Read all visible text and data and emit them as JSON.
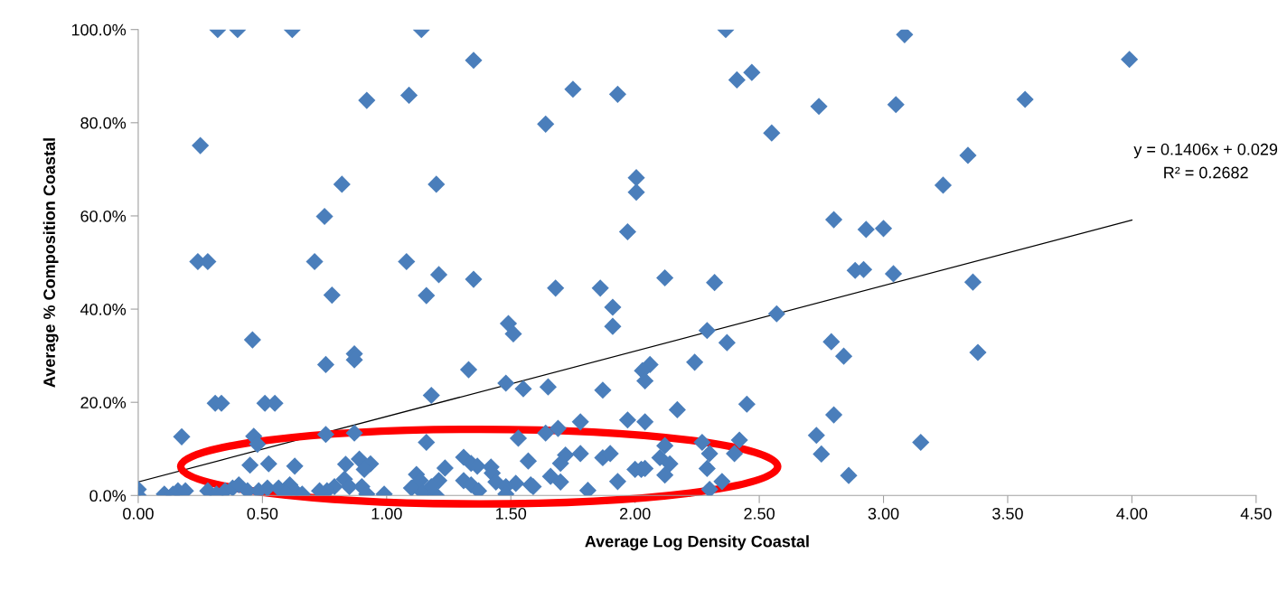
{
  "chart_data": {
    "type": "scatter",
    "xlabel": "Average Log Density Coastal",
    "ylabel": "Average % Composition Coastal",
    "xlim": [
      0,
      4.5
    ],
    "xticks": [
      {
        "value": 0,
        "label": "0.00"
      },
      {
        "value": 0.5,
        "label": "0.50"
      },
      {
        "value": 1,
        "label": "1.00"
      },
      {
        "value": 1.5,
        "label": "1.50"
      },
      {
        "value": 2,
        "label": "2.00"
      },
      {
        "value": 2.5,
        "label": "2.50"
      },
      {
        "value": 3,
        "label": "3.00"
      },
      {
        "value": 3.5,
        "label": "3.50"
      },
      {
        "value": 4,
        "label": "4.00"
      },
      {
        "value": 4.5,
        "label": "4.50"
      }
    ],
    "ylim": [
      0,
      100
    ],
    "yticks": [
      {
        "value": 0,
        "label": "0.0%"
      },
      {
        "value": 20,
        "label": "20.0%"
      },
      {
        "value": 40,
        "label": "40.0%"
      },
      {
        "value": 60,
        "label": "60.0%"
      },
      {
        "value": 80,
        "label": "80.0%"
      },
      {
        "value": 100,
        "label": "100.0%"
      }
    ],
    "grid": false,
    "annotations": [
      "y = 0.1406x + 0.029",
      "R² = 0.2682"
    ],
    "series": [
      {
        "marker": "diamond",
        "color": "#4a7ebb",
        "x": [
          0.32,
          0.4,
          0.62,
          1.14,
          1.35,
          0.92,
          1.09,
          1.64,
          0.25,
          0.82,
          1.2,
          0.75,
          0.71,
          0.24,
          0.28,
          1.08,
          1.21,
          1.35,
          1.16,
          0.78,
          1.49,
          1.51,
          0.46,
          0.87,
          0.87,
          0.755,
          1.33,
          1.48,
          1.55,
          1.18,
          0.31,
          0.335,
          0.51,
          0.55,
          0.175,
          0.465,
          0.48,
          0.755,
          0.87,
          1.16,
          1.53,
          0.45,
          0.525,
          0.63,
          0.835,
          0.89,
          0.935,
          0.91,
          0.83,
          0.85,
          1.12,
          1.135,
          1.235,
          1.21,
          1.31,
          1.34,
          1.365,
          1.42,
          1.425,
          1.57,
          1.31,
          1.34,
          1.37,
          1.44,
          1.48,
          1.48,
          1.52,
          1.59,
          1.1,
          1.145,
          1.2,
          1.18,
          0.99,
          0.9,
          0.92,
          0.79,
          0.76,
          0.73,
          0.61,
          0.63,
          0.66,
          0.28,
          0.315,
          0.35,
          0.38,
          0.405,
          0.44,
          0.485,
          0.52,
          0.565,
          0.595,
          0.105,
          0.14,
          0.16,
          0,
          0,
          0.19,
          1.68,
          1.86,
          2.12,
          2.32,
          1.91,
          1.91,
          2.29,
          2.57,
          2.37,
          2.79,
          2.84,
          2.886,
          2.92,
          3.04,
          2.24,
          2.06,
          2.03,
          2.04,
          1.65,
          1.87,
          2.45,
          2.17,
          2.8,
          1.78,
          1.97,
          2.04,
          1.69,
          1.64,
          2.73,
          3.15,
          2.27,
          2.42,
          2.12,
          2.75,
          2.3,
          2.4,
          1.72,
          1.7,
          1.78,
          1.87,
          1.9,
          2.0,
          2.025,
          2.04,
          2.1,
          2.14,
          2.12,
          2.29,
          1.66,
          1.58,
          1.7,
          1.81,
          1.93,
          2.3,
          2.35,
          2.86,
          2.365,
          3.085,
          1.75,
          1.93,
          2.41,
          2.47,
          2.74,
          3.05,
          2.55,
          2.005,
          2.005,
          1.97,
          2.8,
          2.93,
          3.0,
          3.24,
          3.99,
          3.57,
          3.34,
          3.36,
          3.38
        ],
        "values": [
          100,
          100,
          100,
          100,
          93.4,
          84.8,
          85.9,
          79.7,
          75.1,
          66.8,
          66.8,
          59.9,
          50.2,
          50.2,
          50.2,
          50.2,
          47.4,
          46.4,
          42.9,
          43.0,
          36.9,
          34.7,
          33.4,
          30.4,
          29.1,
          28.1,
          27.0,
          24.1,
          22.9,
          21.5,
          19.8,
          19.8,
          19.8,
          19.8,
          12.6,
          12.7,
          11.0,
          13.1,
          13.4,
          11.4,
          12.3,
          6.5,
          6.8,
          6.3,
          6.7,
          7.8,
          6.8,
          5.6,
          3.5,
          1.9,
          4.5,
          3.2,
          5.9,
          3.2,
          8.2,
          6.9,
          6.3,
          6.1,
          4.8,
          7.4,
          3.2,
          2.3,
          1.0,
          2.9,
          1.9,
          0.3,
          2.6,
          1.9,
          1.6,
          0.6,
          0,
          1.9,
          0.3,
          1.9,
          0.3,
          1.9,
          1.0,
          1.0,
          2.3,
          1.0,
          0.3,
          1.0,
          0.3,
          1.0,
          1.6,
          2.3,
          1.0,
          1.0,
          1.6,
          1.6,
          0.6,
          0.3,
          0.3,
          1.0,
          1.3,
          0,
          1.0,
          44.5,
          44.5,
          46.7,
          45.7,
          40.4,
          36.3,
          35.4,
          39.0,
          32.8,
          33.0,
          29.9,
          48.3,
          48.5,
          47.6,
          28.6,
          28.1,
          26.8,
          24.6,
          23.3,
          22.6,
          19.6,
          18.4,
          17.3,
          15.8,
          16.2,
          15.8,
          14.4,
          13.4,
          12.9,
          11.4,
          11.4,
          11.9,
          10.7,
          8.9,
          9.0,
          9.0,
          8.7,
          6.9,
          9.0,
          8.1,
          9.0,
          5.6,
          5.6,
          5.8,
          8.1,
          6.8,
          4.4,
          5.8,
          4.1,
          2.3,
          2.9,
          1.1,
          3.0,
          1.3,
          3.0,
          4.3,
          100,
          98.9,
          87.2,
          86.1,
          89.2,
          90.8,
          83.5,
          83.9,
          77.8,
          68.2,
          65.1,
          56.6,
          59.2,
          57.1,
          57.3,
          66.6,
          93.6,
          85.0,
          73.0,
          45.8,
          30.7
        ]
      },
      {
        "type": "line",
        "marker": "none",
        "line_style": "solid",
        "color": "#000000",
        "x": [
          0,
          4.0
        ],
        "values": [
          2.9,
          59.1
        ]
      }
    ]
  }
}
